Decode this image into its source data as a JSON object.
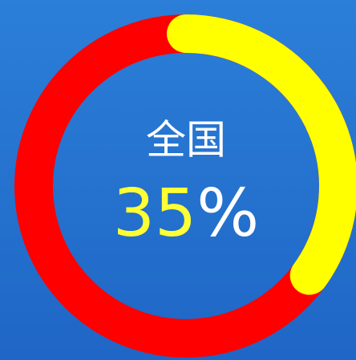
{
  "chart_data": {
    "type": "gauge",
    "title": "全国",
    "value": 35,
    "unit": "%",
    "ylim": [
      0,
      100
    ],
    "color": "#ffff00",
    "track_color": "#ff0000",
    "value_color": "#ffff33"
  }
}
